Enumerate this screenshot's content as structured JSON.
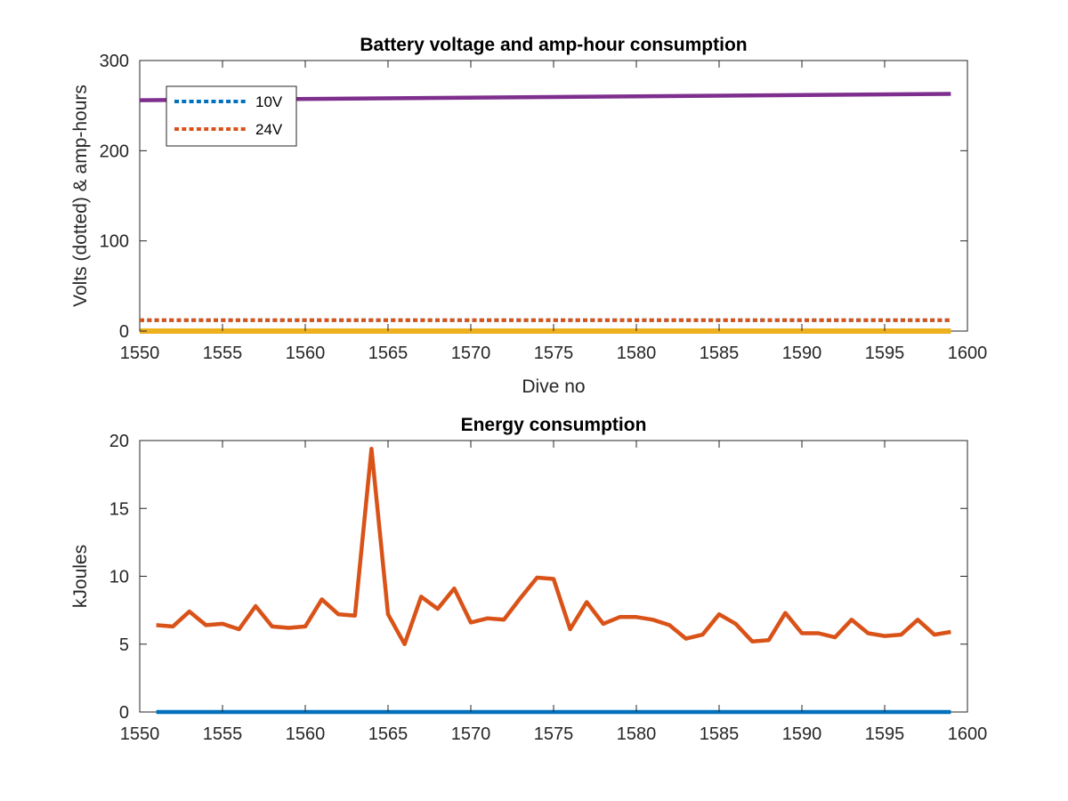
{
  "chart_data": [
    {
      "type": "line",
      "title": "Battery voltage and amp-hour consumption",
      "xlabel": "Dive no",
      "ylabel": "Volts (dotted) & amp-hours",
      "xlim": [
        1550,
        1600
      ],
      "ylim": [
        0,
        300
      ],
      "xticks": [
        1550,
        1555,
        1560,
        1565,
        1570,
        1575,
        1580,
        1585,
        1590,
        1595,
        1600
      ],
      "yticks": [
        0,
        100,
        200,
        300
      ],
      "grid": false,
      "legend": {
        "placement": "top-left",
        "entries": [
          "10V",
          "24V"
        ]
      },
      "series": [
        {
          "name": "10V",
          "style": "dotted",
          "color": "#0072BD",
          "x": [
            1550,
            1599
          ],
          "y": [
            12,
            12
          ]
        },
        {
          "name": "24V",
          "style": "dotted",
          "color": "#D95319",
          "x": [
            1550,
            1599
          ],
          "y": [
            12,
            12
          ]
        },
        {
          "style": "solid",
          "color": "#EDB120",
          "x": [
            1550,
            1599
          ],
          "y": [
            0,
            0
          ]
        },
        {
          "style": "solid",
          "color": "#7E2F8E",
          "x": [
            1550,
            1599
          ],
          "y": [
            256,
            263
          ]
        }
      ]
    },
    {
      "type": "line",
      "title": "Energy consumption",
      "xlabel": "",
      "ylabel": "kJoules",
      "xlim": [
        1550,
        1600
      ],
      "ylim": [
        0,
        20
      ],
      "xticks": [
        1550,
        1555,
        1560,
        1565,
        1570,
        1575,
        1580,
        1585,
        1590,
        1595,
        1600
      ],
      "yticks": [
        0,
        5,
        10,
        15,
        20
      ],
      "grid": false,
      "series": [
        {
          "style": "solid",
          "color": "#0072BD",
          "x": [
            1551,
            1599
          ],
          "y": [
            0,
            0
          ]
        },
        {
          "style": "solid",
          "color": "#D95319",
          "x": [
            1551,
            1552,
            1553,
            1554,
            1555,
            1556,
            1557,
            1558,
            1559,
            1560,
            1561,
            1562,
            1563,
            1564,
            1565,
            1566,
            1567,
            1568,
            1569,
            1570,
            1571,
            1572,
            1573,
            1574,
            1575,
            1576,
            1577,
            1578,
            1579,
            1580,
            1581,
            1582,
            1583,
            1584,
            1585,
            1586,
            1587,
            1588,
            1589,
            1590,
            1591,
            1592,
            1593,
            1594,
            1595,
            1596,
            1597,
            1598,
            1599
          ],
          "y": [
            6.4,
            6.3,
            7.4,
            6.4,
            6.5,
            6.1,
            7.8,
            6.3,
            6.2,
            6.3,
            8.3,
            7.2,
            7.1,
            19.4,
            7.2,
            5.0,
            8.5,
            7.6,
            9.1,
            6.6,
            6.9,
            6.8,
            8.4,
            9.9,
            9.8,
            6.1,
            8.1,
            6.5,
            7.0,
            7.0,
            6.8,
            6.4,
            5.4,
            5.7,
            7.2,
            6.5,
            5.2,
            5.3,
            7.3,
            5.8,
            5.8,
            5.5,
            6.8,
            5.8,
            5.6,
            5.7,
            6.8,
            5.7,
            5.9
          ]
        }
      ]
    }
  ]
}
